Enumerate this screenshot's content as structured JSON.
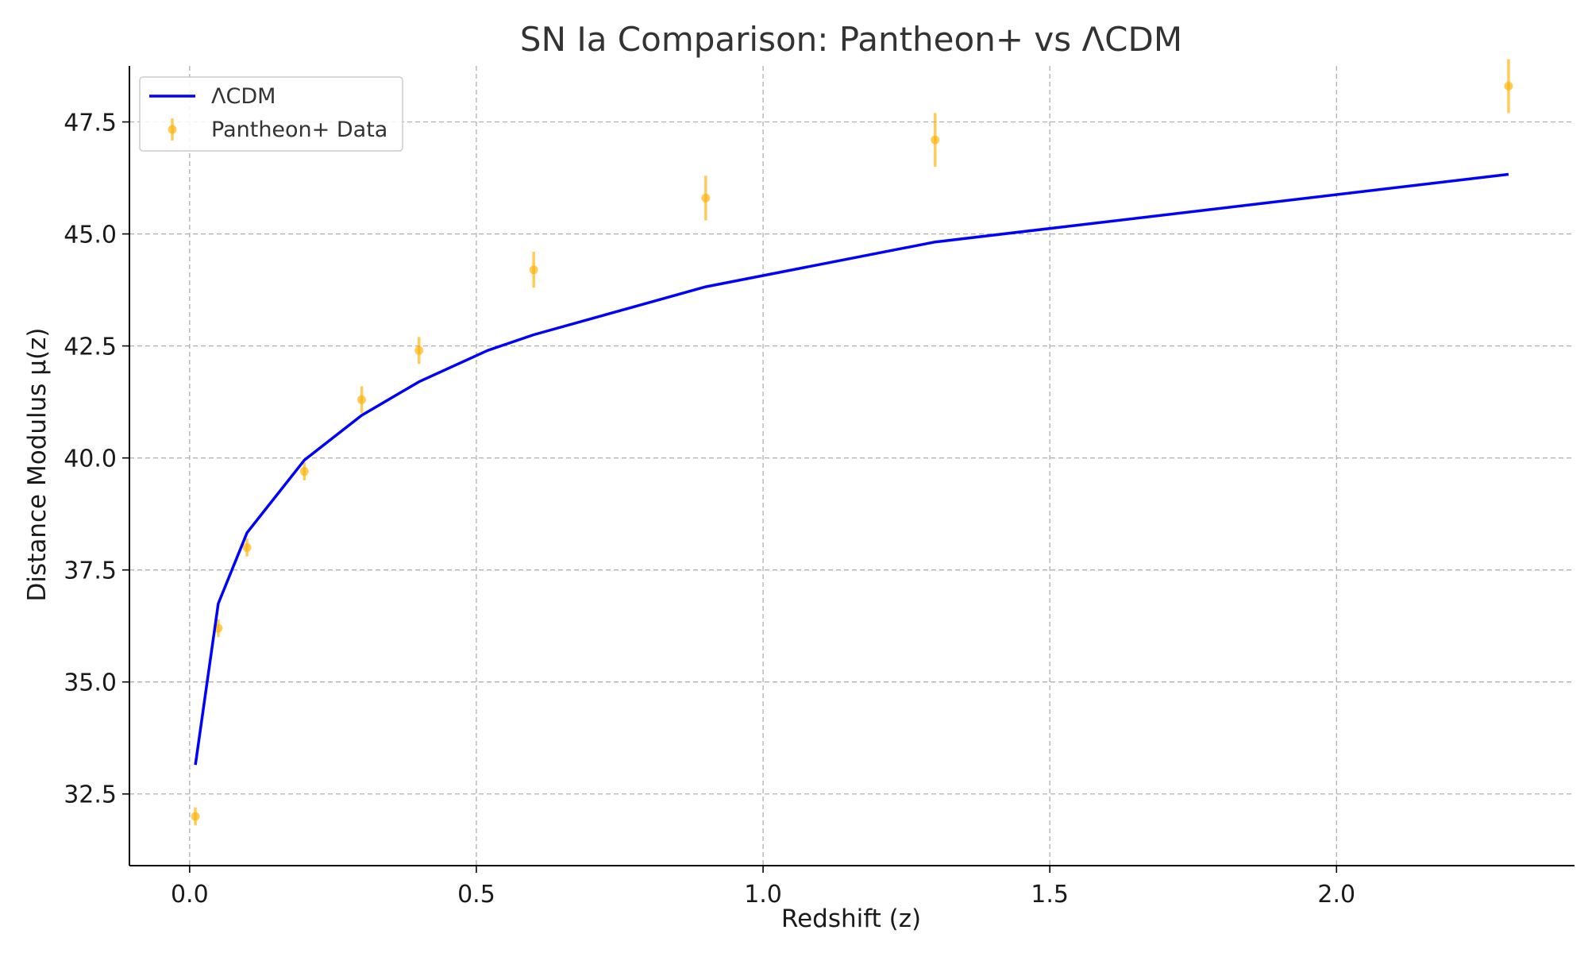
{
  "chart_data": {
    "type": "line",
    "title": "SN Ia Comparison: Pantheon+ vs ΛCDM",
    "xlabel": "Redshift (z)",
    "ylabel": "Distance Modulus μ(z)",
    "xlim": [
      -0.105,
      2.415
    ],
    "ylim": [
      30.9,
      48.75
    ],
    "x_ticks": [
      0.0,
      0.5,
      1.0,
      1.5,
      2.0
    ],
    "x_tick_labels": [
      "0.0",
      "0.5",
      "1.0",
      "1.5",
      "2.0"
    ],
    "y_ticks": [
      32.5,
      35.0,
      37.5,
      40.0,
      42.5,
      45.0,
      47.5
    ],
    "y_tick_labels": [
      "32.5",
      "35.0",
      "37.5",
      "40.0",
      "42.5",
      "45.0",
      "47.5"
    ],
    "grid": true,
    "legend_position": "top-left",
    "series": [
      {
        "name": "ΛCDM",
        "kind": "line",
        "color": "#0000ff",
        "x": [
          0.01,
          0.05,
          0.1,
          0.2,
          0.3,
          0.4,
          0.52,
          0.6,
          0.9,
          1.3,
          2.3
        ],
        "y": [
          33.15,
          36.75,
          38.33,
          39.95,
          40.95,
          41.7,
          42.4,
          42.75,
          43.82,
          44.82,
          46.33
        ]
      },
      {
        "name": "Pantheon+ Data",
        "kind": "errorbar",
        "color": "#ffb000",
        "x": [
          0.01,
          0.05,
          0.1,
          0.2,
          0.3,
          0.4,
          0.6,
          0.9,
          1.3,
          2.3
        ],
        "y": [
          32.0,
          36.2,
          38.0,
          39.7,
          41.3,
          42.4,
          44.2,
          45.8,
          47.1,
          48.3
        ],
        "yerr": [
          0.2,
          0.2,
          0.2,
          0.2,
          0.3,
          0.3,
          0.4,
          0.5,
          0.6,
          0.6
        ]
      }
    ]
  }
}
